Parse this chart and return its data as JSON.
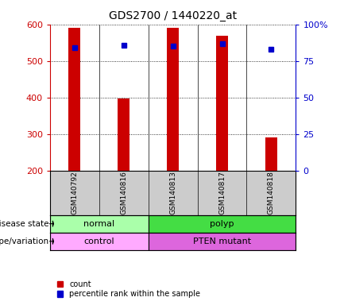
{
  "title": "GDS2700 / 1440220_at",
  "samples": [
    "GSM140792",
    "GSM140816",
    "GSM140813",
    "GSM140817",
    "GSM140818"
  ],
  "counts": [
    590,
    397,
    591,
    570,
    291
  ],
  "percentile_ranks": [
    84,
    86,
    85,
    87,
    83
  ],
  "ymin": 200,
  "ymax": 600,
  "yticks": [
    200,
    300,
    400,
    500,
    600
  ],
  "right_yticks": [
    0,
    25,
    50,
    75,
    100
  ],
  "bar_color": "#cc0000",
  "dot_color": "#0000cc",
  "disease_state_groups": [
    {
      "label": "normal",
      "start": 0,
      "end": 2,
      "color": "#aaffaa"
    },
    {
      "label": "polyp",
      "start": 2,
      "end": 5,
      "color": "#44dd44"
    }
  ],
  "genotype_groups": [
    {
      "label": "control",
      "start": 0,
      "end": 2,
      "color": "#ffaaff"
    },
    {
      "label": "PTEN mutant",
      "start": 2,
      "end": 5,
      "color": "#dd66dd"
    }
  ],
  "disease_label": "disease state",
  "genotype_label": "genotype/variation",
  "legend_count_label": "count",
  "legend_percentile_label": "percentile rank within the sample",
  "bar_width": 0.25,
  "background_color": "#ffffff",
  "left_axis_color": "#cc0000",
  "right_axis_color": "#0000cc",
  "sample_box_color": "#cccccc"
}
